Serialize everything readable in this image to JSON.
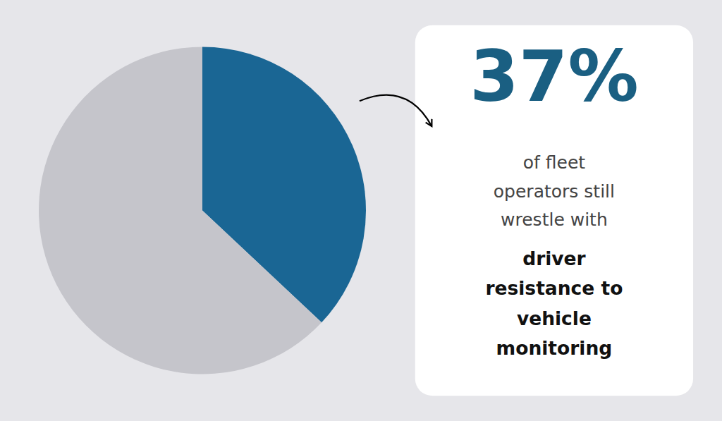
{
  "chart_data": {
    "type": "pie",
    "values": [
      37,
      63
    ],
    "colors": [
      "#1a6694",
      "#c5c5cb"
    ],
    "annotations": [
      {
        "text": "37%",
        "color": "#1a5f82"
      },
      {
        "text": "of fleet",
        "color": "#444444"
      },
      {
        "text": "operators still",
        "color": "#444444"
      },
      {
        "text": "wrestle with",
        "color": "#444444"
      },
      {
        "text": "driver",
        "color": "#111111"
      },
      {
        "text": "resistance to",
        "color": "#111111"
      },
      {
        "text": "vehicle",
        "color": "#111111"
      },
      {
        "text": "monitoring",
        "color": "#111111"
      }
    ]
  }
}
